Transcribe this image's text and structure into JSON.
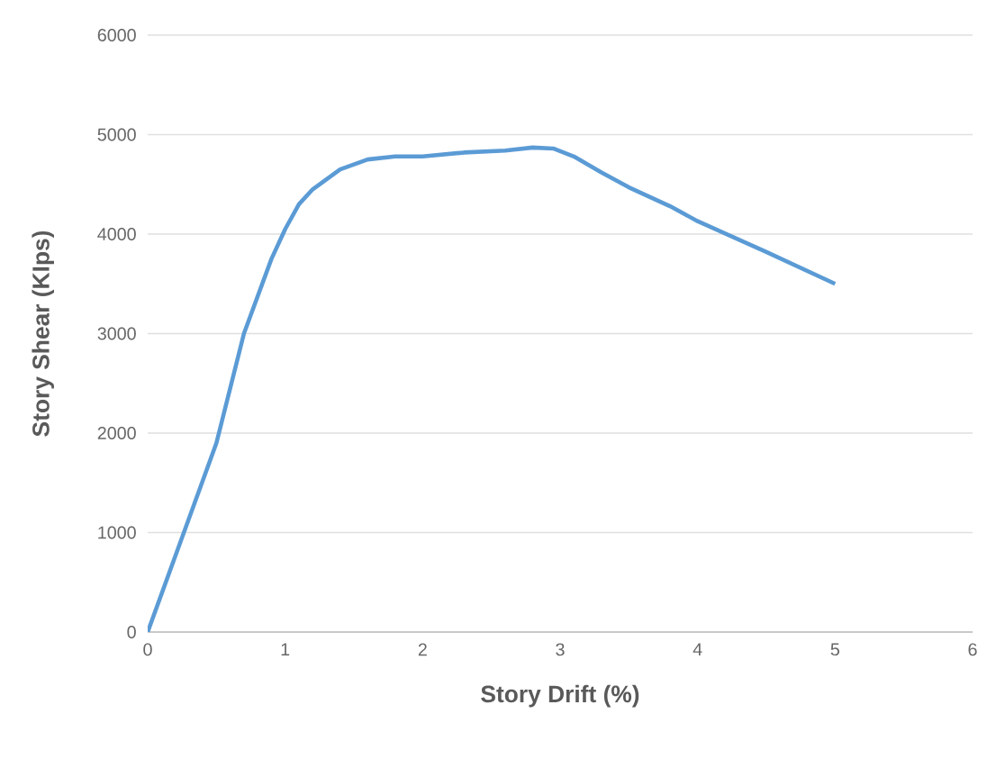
{
  "chart_data": {
    "type": "line",
    "xlabel": "Story Drift (%)",
    "ylabel": "Story Shear (KIps)",
    "x": [
      0,
      0.25,
      0.5,
      0.7,
      0.9,
      1.0,
      1.1,
      1.2,
      1.4,
      1.6,
      1.8,
      2.0,
      2.3,
      2.6,
      2.8,
      2.95,
      3.1,
      3.3,
      3.5,
      3.8,
      4.0,
      4.5,
      5.0
    ],
    "series": [
      {
        "color": "#5b9bd5",
        "values": [
          0,
          950,
          1900,
          3000,
          3750,
          4050,
          4300,
          4450,
          4650,
          4750,
          4780,
          4780,
          4820,
          4840,
          4870,
          4860,
          4780,
          4620,
          4470,
          4280,
          4130,
          3820,
          3500
        ]
      }
    ],
    "xlim": [
      0,
      6
    ],
    "ylim": [
      0,
      6000
    ],
    "xticks": [
      0,
      1,
      2,
      3,
      4,
      5,
      6
    ],
    "yticks": [
      0,
      1000,
      2000,
      3000,
      4000,
      5000,
      6000
    ],
    "grid": "y",
    "marker": "none",
    "line_style": "solid"
  }
}
